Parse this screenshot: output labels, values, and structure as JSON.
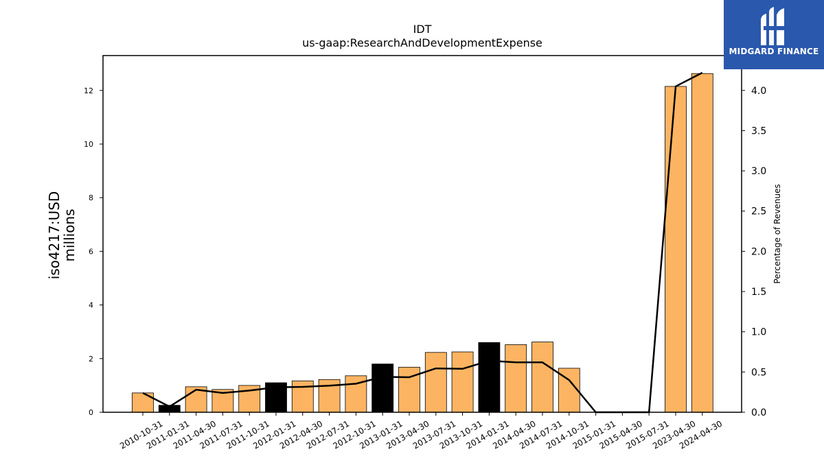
{
  "brand": {
    "name": "MIDGARD FINANCE",
    "color": "#2a58ad"
  },
  "chart_data": {
    "type": "bar",
    "title": "IDT",
    "subtitle": "us-gaap:ResearchAndDevelopmentExpense",
    "ylabel": "iso4217:USD\nmillions",
    "y2label": "Percentage of Revenues",
    "ylim": [
      0,
      13.3
    ],
    "y2lim": [
      0,
      4.433
    ],
    "yticks": [
      0,
      2,
      4,
      6,
      8,
      10,
      12
    ],
    "y2ticks": [
      0.0,
      0.5,
      1.0,
      1.5,
      2.0,
      2.5,
      3.0,
      3.5,
      4.0
    ],
    "categories": [
      "2010-10-31",
      "2011-01-31",
      "2011-04-30",
      "2011-07-31",
      "2011-10-31",
      "2012-01-31",
      "2012-04-30",
      "2012-07-31",
      "2012-10-31",
      "2013-01-31",
      "2013-04-30",
      "2013-07-31",
      "2013-10-31",
      "2014-01-31",
      "2014-04-30",
      "2014-07-31",
      "2014-10-31",
      "2015-01-31",
      "2015-04-30",
      "2015-07-31",
      "2023-04-30",
      "2024-04-30"
    ],
    "series": [
      {
        "type": "bar",
        "values": [
          0.72,
          0.26,
          0.95,
          0.85,
          1.0,
          1.1,
          1.17,
          1.22,
          1.36,
          1.8,
          1.68,
          2.23,
          2.25,
          2.6,
          2.52,
          2.62,
          1.64,
          0,
          0,
          0,
          12.15,
          12.63
        ],
        "colors": [
          "#fdb462",
          "#000000",
          "#fdb462",
          "#fdb462",
          "#fdb462",
          "#000000",
          "#fdb462",
          "#fdb462",
          "#fdb462",
          "#000000",
          "#fdb462",
          "#fdb462",
          "#fdb462",
          "#000000",
          "#fdb462",
          "#fdb462",
          "#fdb462",
          "#fdb462",
          "#fdb462",
          "#fdb462",
          "#fdb462",
          "#fdb462"
        ]
      },
      {
        "type": "line",
        "axis": "right",
        "color": "#000000",
        "values": [
          0.24,
          0.07,
          0.28,
          0.24,
          0.27,
          0.31,
          0.315,
          0.33,
          0.355,
          0.44,
          0.435,
          0.545,
          0.54,
          0.64,
          0.62,
          0.62,
          0.4,
          0.0,
          0.0,
          0.0,
          4.05,
          4.22
        ]
      }
    ]
  }
}
